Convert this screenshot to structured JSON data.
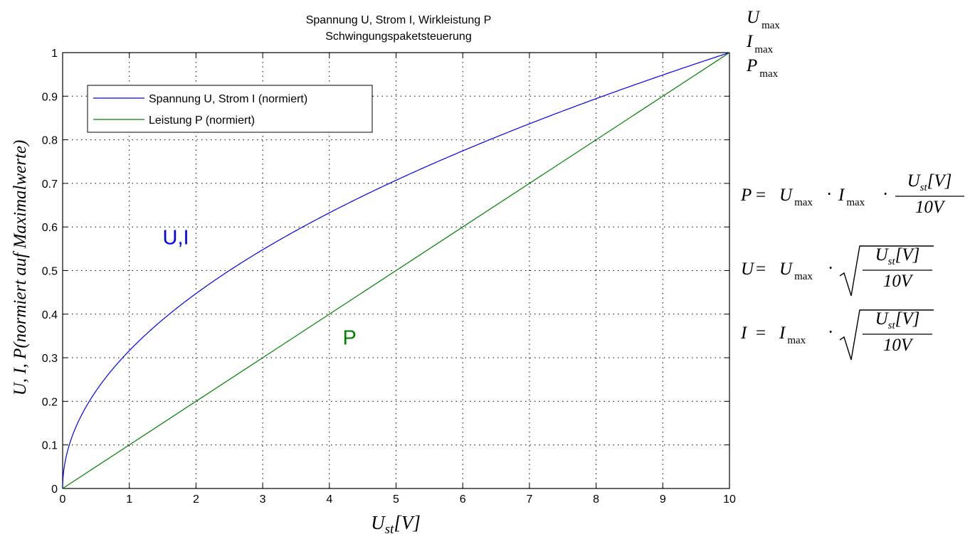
{
  "chart_data": {
    "type": "line",
    "title": [
      "Spannung U, Strom I, Wirkleistung P",
      "Schwingungspaketsteuerung"
    ],
    "xlabel": "U_st[V]",
    "ylabel": "U, I, P(normiert auf Maximalwerte)",
    "xlim": [
      0,
      10
    ],
    "ylim": [
      0,
      1
    ],
    "xticks": [
      "0",
      "1",
      "2",
      "3",
      "4",
      "5",
      "6",
      "7",
      "8",
      "9",
      "10"
    ],
    "yticks": [
      "0",
      "0.1",
      "0.2",
      "0.3",
      "0.4",
      "0.5",
      "0.6",
      "0.7",
      "0.8",
      "0.9",
      "1"
    ],
    "grid": true,
    "legend_position": "top-left",
    "series": [
      {
        "name": "Spannung U, Strom I (normiert)",
        "color": "#0000ff",
        "x": [
          0,
          0.02,
          0.05,
          0.1,
          0.2,
          0.3,
          0.5,
          0.75,
          1,
          1.5,
          2,
          2.5,
          3,
          3.5,
          4,
          4.5,
          5,
          5.5,
          6,
          6.5,
          7,
          7.5,
          8,
          8.5,
          9,
          9.5,
          10
        ],
        "y": [
          0,
          0.045,
          0.071,
          0.1,
          0.141,
          0.173,
          0.224,
          0.274,
          0.316,
          0.387,
          0.447,
          0.5,
          0.548,
          0.592,
          0.632,
          0.671,
          0.707,
          0.742,
          0.775,
          0.806,
          0.837,
          0.866,
          0.894,
          0.922,
          0.949,
          0.975,
          1
        ]
      },
      {
        "name": "Leistung P (normiert)",
        "color": "#008000",
        "x": [
          0,
          10
        ],
        "y": [
          0,
          1
        ]
      }
    ],
    "annotations": [
      {
        "text": "U,I",
        "color": "#0000ff",
        "x": 1.5,
        "y": 0.56
      },
      {
        "text": "P",
        "color": "#008000",
        "x": 4.2,
        "y": 0.33
      }
    ]
  },
  "side_labels": {
    "maxima": [
      "U",
      "I",
      "P"
    ],
    "max_subscript": "max"
  },
  "formulas": [
    {
      "lhs": "P",
      "form": "fraction",
      "factors": [
        "U",
        "I"
      ],
      "num": "U",
      "num_sub": "st",
      "num_unit": "[V]",
      "den": "10V"
    },
    {
      "lhs": "U",
      "form": "sqrt",
      "factors": [
        "U"
      ],
      "num": "U",
      "num_sub": "st",
      "num_unit": "[V]",
      "den": "10V"
    },
    {
      "lhs": "I",
      "form": "sqrt",
      "factors": [
        "I"
      ],
      "num": "U",
      "num_sub": "st",
      "num_unit": "[V]",
      "den": "10V"
    }
  ]
}
